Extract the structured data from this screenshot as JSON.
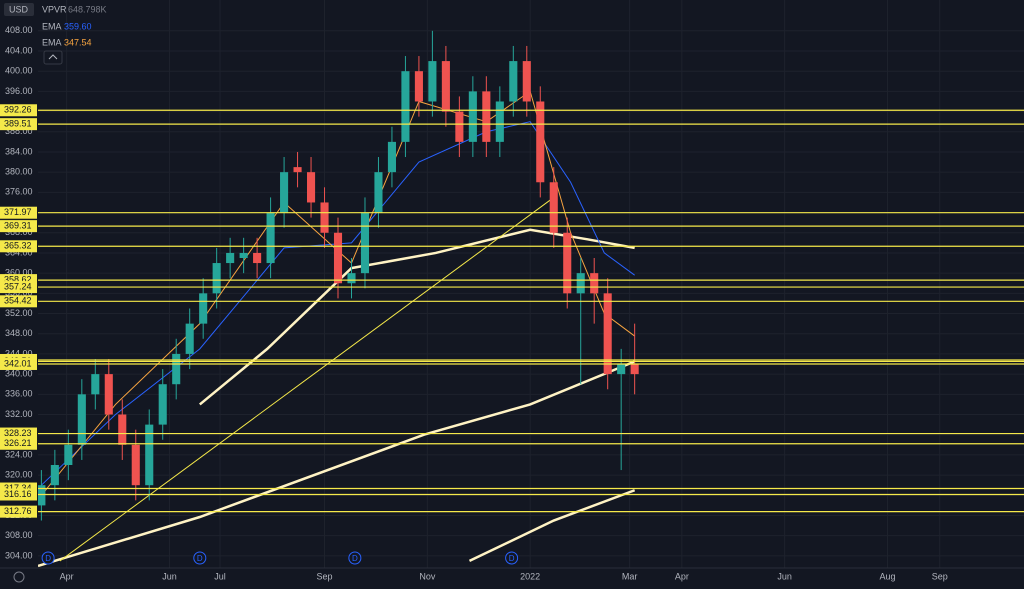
{
  "chart_data": {
    "type": "candlestick",
    "currency": "USD",
    "indicators": [
      {
        "name": "VPVR",
        "value_label": "648.798K"
      }
    ],
    "xlim": [
      14,
      599
    ],
    "ylim": [
      301.6,
      414.1
    ],
    "xticks": [
      {
        "value": 31,
        "label": "Apr"
      },
      {
        "value": 92,
        "label": "Jun"
      },
      {
        "value": 122,
        "label": "Jul"
      },
      {
        "value": 184,
        "label": "Sep"
      },
      {
        "value": 245,
        "label": "Nov"
      },
      {
        "value": 306,
        "label": "2022"
      },
      {
        "value": 365,
        "label": "Mar"
      },
      {
        "value": 396,
        "label": "Apr"
      },
      {
        "value": 457,
        "label": "Jun"
      },
      {
        "value": 518,
        "label": "Aug"
      },
      {
        "value": 549,
        "label": "Sep"
      }
    ],
    "yticks": [
      {
        "value": 304,
        "label": "304.00"
      },
      {
        "value": 308,
        "label": "308.00"
      },
      {
        "value": 312,
        "label": "312.00"
      },
      {
        "value": 316,
        "label": "316.00"
      },
      {
        "value": 320,
        "label": "320.00"
      },
      {
        "value": 324,
        "label": "324.00"
      },
      {
        "value": 328,
        "label": "328.00"
      },
      {
        "value": 332,
        "label": "332.00"
      },
      {
        "value": 336,
        "label": "336.00"
      },
      {
        "value": 340,
        "label": "340.00"
      },
      {
        "value": 344,
        "label": "344.00"
      },
      {
        "value": 348,
        "label": "348.00"
      },
      {
        "value": 352,
        "label": "352.00"
      },
      {
        "value": 356,
        "label": "356.00"
      },
      {
        "value": 360,
        "label": "360.00"
      },
      {
        "value": 364,
        "label": "364.00"
      },
      {
        "value": 368,
        "label": "368.00"
      },
      {
        "value": 372,
        "label": "372.00"
      },
      {
        "value": 376,
        "label": "376.00"
      },
      {
        "value": 380,
        "label": "380.00"
      },
      {
        "value": 384,
        "label": "384.00"
      },
      {
        "value": 388,
        "label": "388.00"
      },
      {
        "value": 392,
        "label": "392.00"
      },
      {
        "value": 396,
        "label": "396.00"
      },
      {
        "value": 400,
        "label": "400.00"
      },
      {
        "value": 404,
        "label": "404.00"
      },
      {
        "value": 408,
        "label": "408.00"
      }
    ],
    "x": [
      16,
      24,
      32,
      40,
      48,
      56,
      64,
      72,
      80,
      88,
      96,
      104,
      112,
      120,
      128,
      136,
      144,
      152,
      160,
      168,
      176,
      184,
      192,
      200,
      208,
      216,
      224,
      232,
      240,
      248,
      256,
      264,
      272,
      280,
      288,
      296,
      304,
      312,
      320,
      328,
      336,
      344,
      352,
      360,
      368
    ],
    "open": [
      314,
      318,
      322,
      326,
      336,
      340,
      332,
      326,
      318,
      330,
      338,
      344,
      350,
      356,
      362,
      363,
      364,
      362,
      372,
      381,
      380,
      374,
      368,
      358,
      360,
      372,
      380,
      386,
      400,
      394,
      402,
      392,
      386,
      396,
      386,
      394,
      402,
      394,
      378,
      368,
      356,
      360,
      356,
      340,
      342
    ],
    "high": [
      321,
      325,
      329,
      339,
      343,
      343,
      335,
      329,
      333,
      341,
      347,
      353,
      359,
      365,
      367,
      367,
      367,
      375,
      383,
      384,
      383,
      377,
      371,
      363,
      375,
      383,
      389,
      403,
      403,
      408,
      405,
      395,
      399,
      399,
      397,
      405,
      405,
      397,
      381,
      371,
      363,
      363,
      359,
      345,
      350
    ],
    "low": [
      311,
      315,
      319,
      323,
      333,
      329,
      323,
      315,
      315,
      327,
      335,
      341,
      347,
      353,
      359,
      360,
      359,
      359,
      369,
      377,
      371,
      365,
      355,
      355,
      357,
      369,
      377,
      383,
      391,
      391,
      389,
      383,
      383,
      383,
      383,
      391,
      391,
      375,
      365,
      353,
      338,
      350,
      337,
      321,
      336
    ],
    "close": [
      318,
      322,
      326,
      336,
      340,
      332,
      326,
      318,
      330,
      338,
      344,
      350,
      356,
      362,
      364,
      364,
      362,
      372,
      380,
      380,
      374,
      368,
      358,
      360,
      372,
      380,
      386,
      400,
      394,
      402,
      392,
      386,
      396,
      386,
      394,
      402,
      394,
      378,
      368,
      356,
      360,
      356,
      340,
      342,
      340
    ],
    "up_color": "#26a69a",
    "down_color": "#ef5350",
    "series": [
      {
        "name": "EMA",
        "last_label": "359.60",
        "color": "#2962ff",
        "x": [
          16,
          60,
          110,
          160,
          200,
          240,
          280,
          306,
          330,
          350,
          368
        ],
        "values": [
          318,
          332,
          345,
          365,
          366,
          382,
          388,
          390,
          378,
          364,
          359.6
        ]
      },
      {
        "name": "EMA",
        "last_label": "347.54",
        "color": "#f7a440",
        "x": [
          16,
          60,
          110,
          160,
          200,
          240,
          280,
          306,
          330,
          350,
          368
        ],
        "values": [
          316,
          334,
          350,
          374,
          362,
          394,
          390,
          396,
          368,
          352,
          347.54
        ]
      }
    ],
    "overlays": [
      {
        "color": "#fff3c4",
        "x": [
          110,
          150,
          200,
          250,
          306,
          340,
          368
        ],
        "values": [
          334,
          345,
          361,
          364,
          368.6,
          366.7,
          365
        ]
      },
      {
        "color": "#fff3c4",
        "x": [
          14,
          110,
          243,
          306,
          368
        ],
        "values": [
          302,
          311.7,
          328,
          334,
          342.5
        ]
      },
      {
        "color": "#fff3c4",
        "x": [
          270,
          320,
          368
        ],
        "values": [
          303,
          311,
          317
        ]
      },
      {
        "color": "#f5e94a",
        "x": [
          27,
          320
        ],
        "values": [
          303,
          375
        ]
      }
    ],
    "levels": {
      "color": "#f5e94a",
      "values": [
        392.26,
        389.51,
        371.97,
        369.31,
        365.32,
        358.62,
        357.24,
        354.42,
        342.8,
        342.51,
        342.01,
        328.23,
        326.21,
        317.34,
        316.16,
        312.76
      ],
      "value_labels": [
        "392.26",
        "389.51",
        "371.97",
        "369.31",
        "365.32",
        "358.62",
        "357.24",
        "354.42",
        "342.80",
        "342.51",
        "342.01",
        "328.23",
        "326.21",
        "317.34",
        "316.16",
        "312.76"
      ]
    },
    "events": {
      "label": "D",
      "x": [
        20,
        110,
        202,
        295
      ]
    }
  }
}
